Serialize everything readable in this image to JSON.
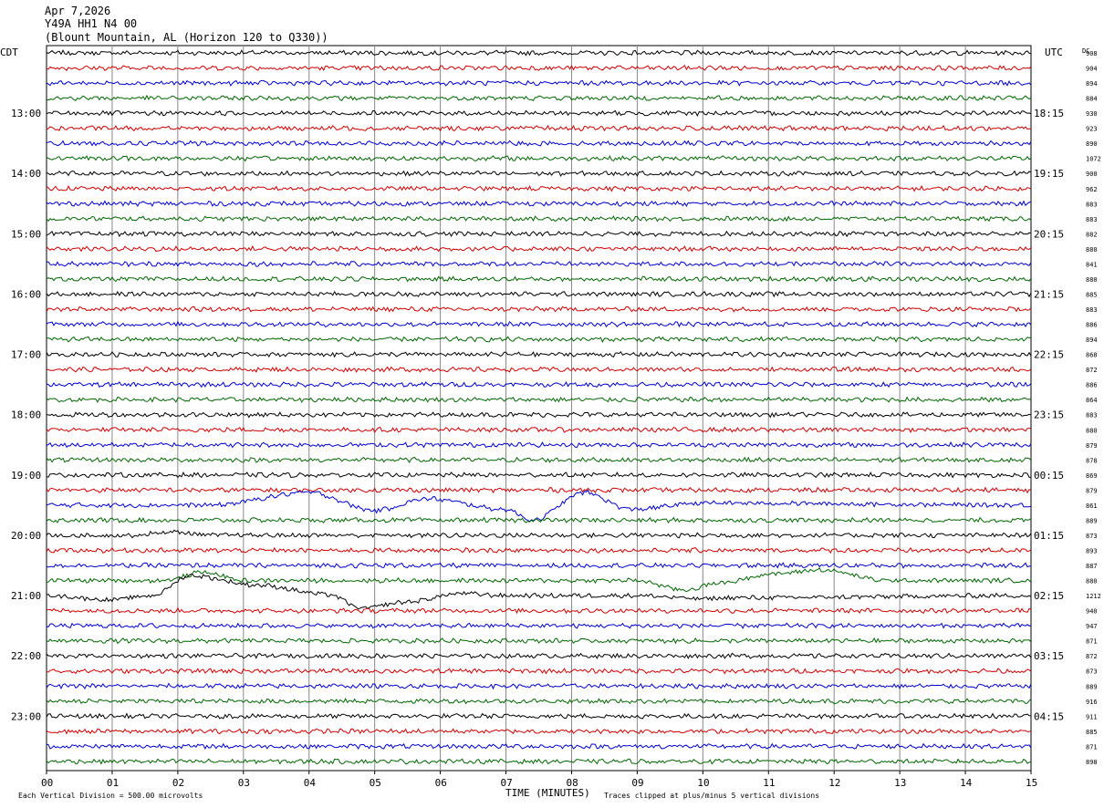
{
  "header": {
    "date": "Apr 7,2026",
    "station": "Y49A HH1 N4 00",
    "location": "(Blount Mountain, AL (Horizon 120 to Q330))"
  },
  "labels": {
    "left_zone": "CDT",
    "right_zone": "UTC",
    "dc_label": "DC",
    "xlabel": "TIME (MINUTES)",
    "scale_note": "Each Vertical Division =  500.00 microvolts",
    "clip_note": "Traces clipped at plus/minus 5 vertical divisions"
  },
  "colors": {
    "trace_cycle": [
      "#000000",
      "#cc0000",
      "#0000cc",
      "#006600"
    ],
    "grid": "#888888"
  },
  "chart_data": {
    "type": "line",
    "title": "Y49A HH1 N4 00",
    "xlabel": "TIME (MINUTES)",
    "xlim": [
      0,
      15
    ],
    "x_ticks": [
      "00",
      "01",
      "02",
      "03",
      "04",
      "05",
      "06",
      "07",
      "08",
      "09",
      "10",
      "11",
      "12",
      "13",
      "14",
      "15"
    ],
    "rows_per_hour": 4,
    "left_hour_labels": [
      "13:00",
      "14:00",
      "15:00",
      "16:00",
      "17:00",
      "18:00",
      "19:00",
      "20:00",
      "21:00",
      "22:00",
      "23:00"
    ],
    "right_hour_labels": [
      "18:15",
      "19:15",
      "20:15",
      "21:15",
      "22:15",
      "23:15",
      "00:15",
      "01:15",
      "02:15",
      "03:15",
      "04:15"
    ],
    "dc_offsets": [
      908,
      904,
      894,
      884,
      930,
      923,
      890,
      1072,
      900,
      962,
      883,
      883,
      882,
      880,
      841,
      880,
      885,
      883,
      886,
      894,
      868,
      872,
      886,
      864,
      883,
      880,
      879,
      878,
      869,
      879,
      861,
      889,
      873,
      893,
      887,
      880,
      1212,
      940,
      947,
      871,
      872,
      873,
      889,
      916,
      911,
      885,
      871,
      898
    ],
    "events": [
      {
        "row": 30,
        "color": "blue",
        "description": "long-period wander",
        "anchors": [
          [
            0,
            0
          ],
          [
            2.5,
            0
          ],
          [
            4,
            1.2
          ],
          [
            5,
            -0.5
          ],
          [
            5.8,
            0.6
          ],
          [
            7,
            -0.4
          ],
          [
            7.4,
            -1.4
          ],
          [
            8.2,
            1.2
          ],
          [
            8.9,
            -0.4
          ],
          [
            10,
            0.2
          ],
          [
            15,
            0
          ]
        ]
      },
      {
        "row": 35,
        "color": "green",
        "description": "long-period wander",
        "anchors": [
          [
            0,
            0
          ],
          [
            1.8,
            0
          ],
          [
            2.4,
            0.8
          ],
          [
            3,
            0
          ],
          [
            9,
            0
          ],
          [
            9.7,
            -0.9
          ],
          [
            10.3,
            -0.2
          ],
          [
            11,
            0.6
          ],
          [
            11.8,
            1.0
          ],
          [
            12.8,
            0
          ],
          [
            15,
            0
          ]
        ]
      },
      {
        "row": 36,
        "color": "black",
        "description": "long-period wander",
        "anchors": [
          [
            0,
            0
          ],
          [
            1,
            -0.4
          ],
          [
            1.6,
            0
          ],
          [
            2.2,
            1.9
          ],
          [
            3.2,
            1.0
          ],
          [
            4.3,
            0.1
          ],
          [
            4.8,
            -1.2
          ],
          [
            5.5,
            -0.6
          ],
          [
            6.3,
            0.2
          ],
          [
            7,
            0
          ],
          [
            9,
            0
          ],
          [
            10,
            -0.3
          ],
          [
            10.5,
            -0.2
          ],
          [
            15,
            0
          ]
        ]
      },
      {
        "row": 32,
        "color": "black",
        "description": "small bump",
        "anchors": [
          [
            0,
            0
          ],
          [
            1.3,
            0
          ],
          [
            1.9,
            0.3
          ],
          [
            2.6,
            0
          ],
          [
            15,
            0
          ]
        ]
      }
    ]
  }
}
